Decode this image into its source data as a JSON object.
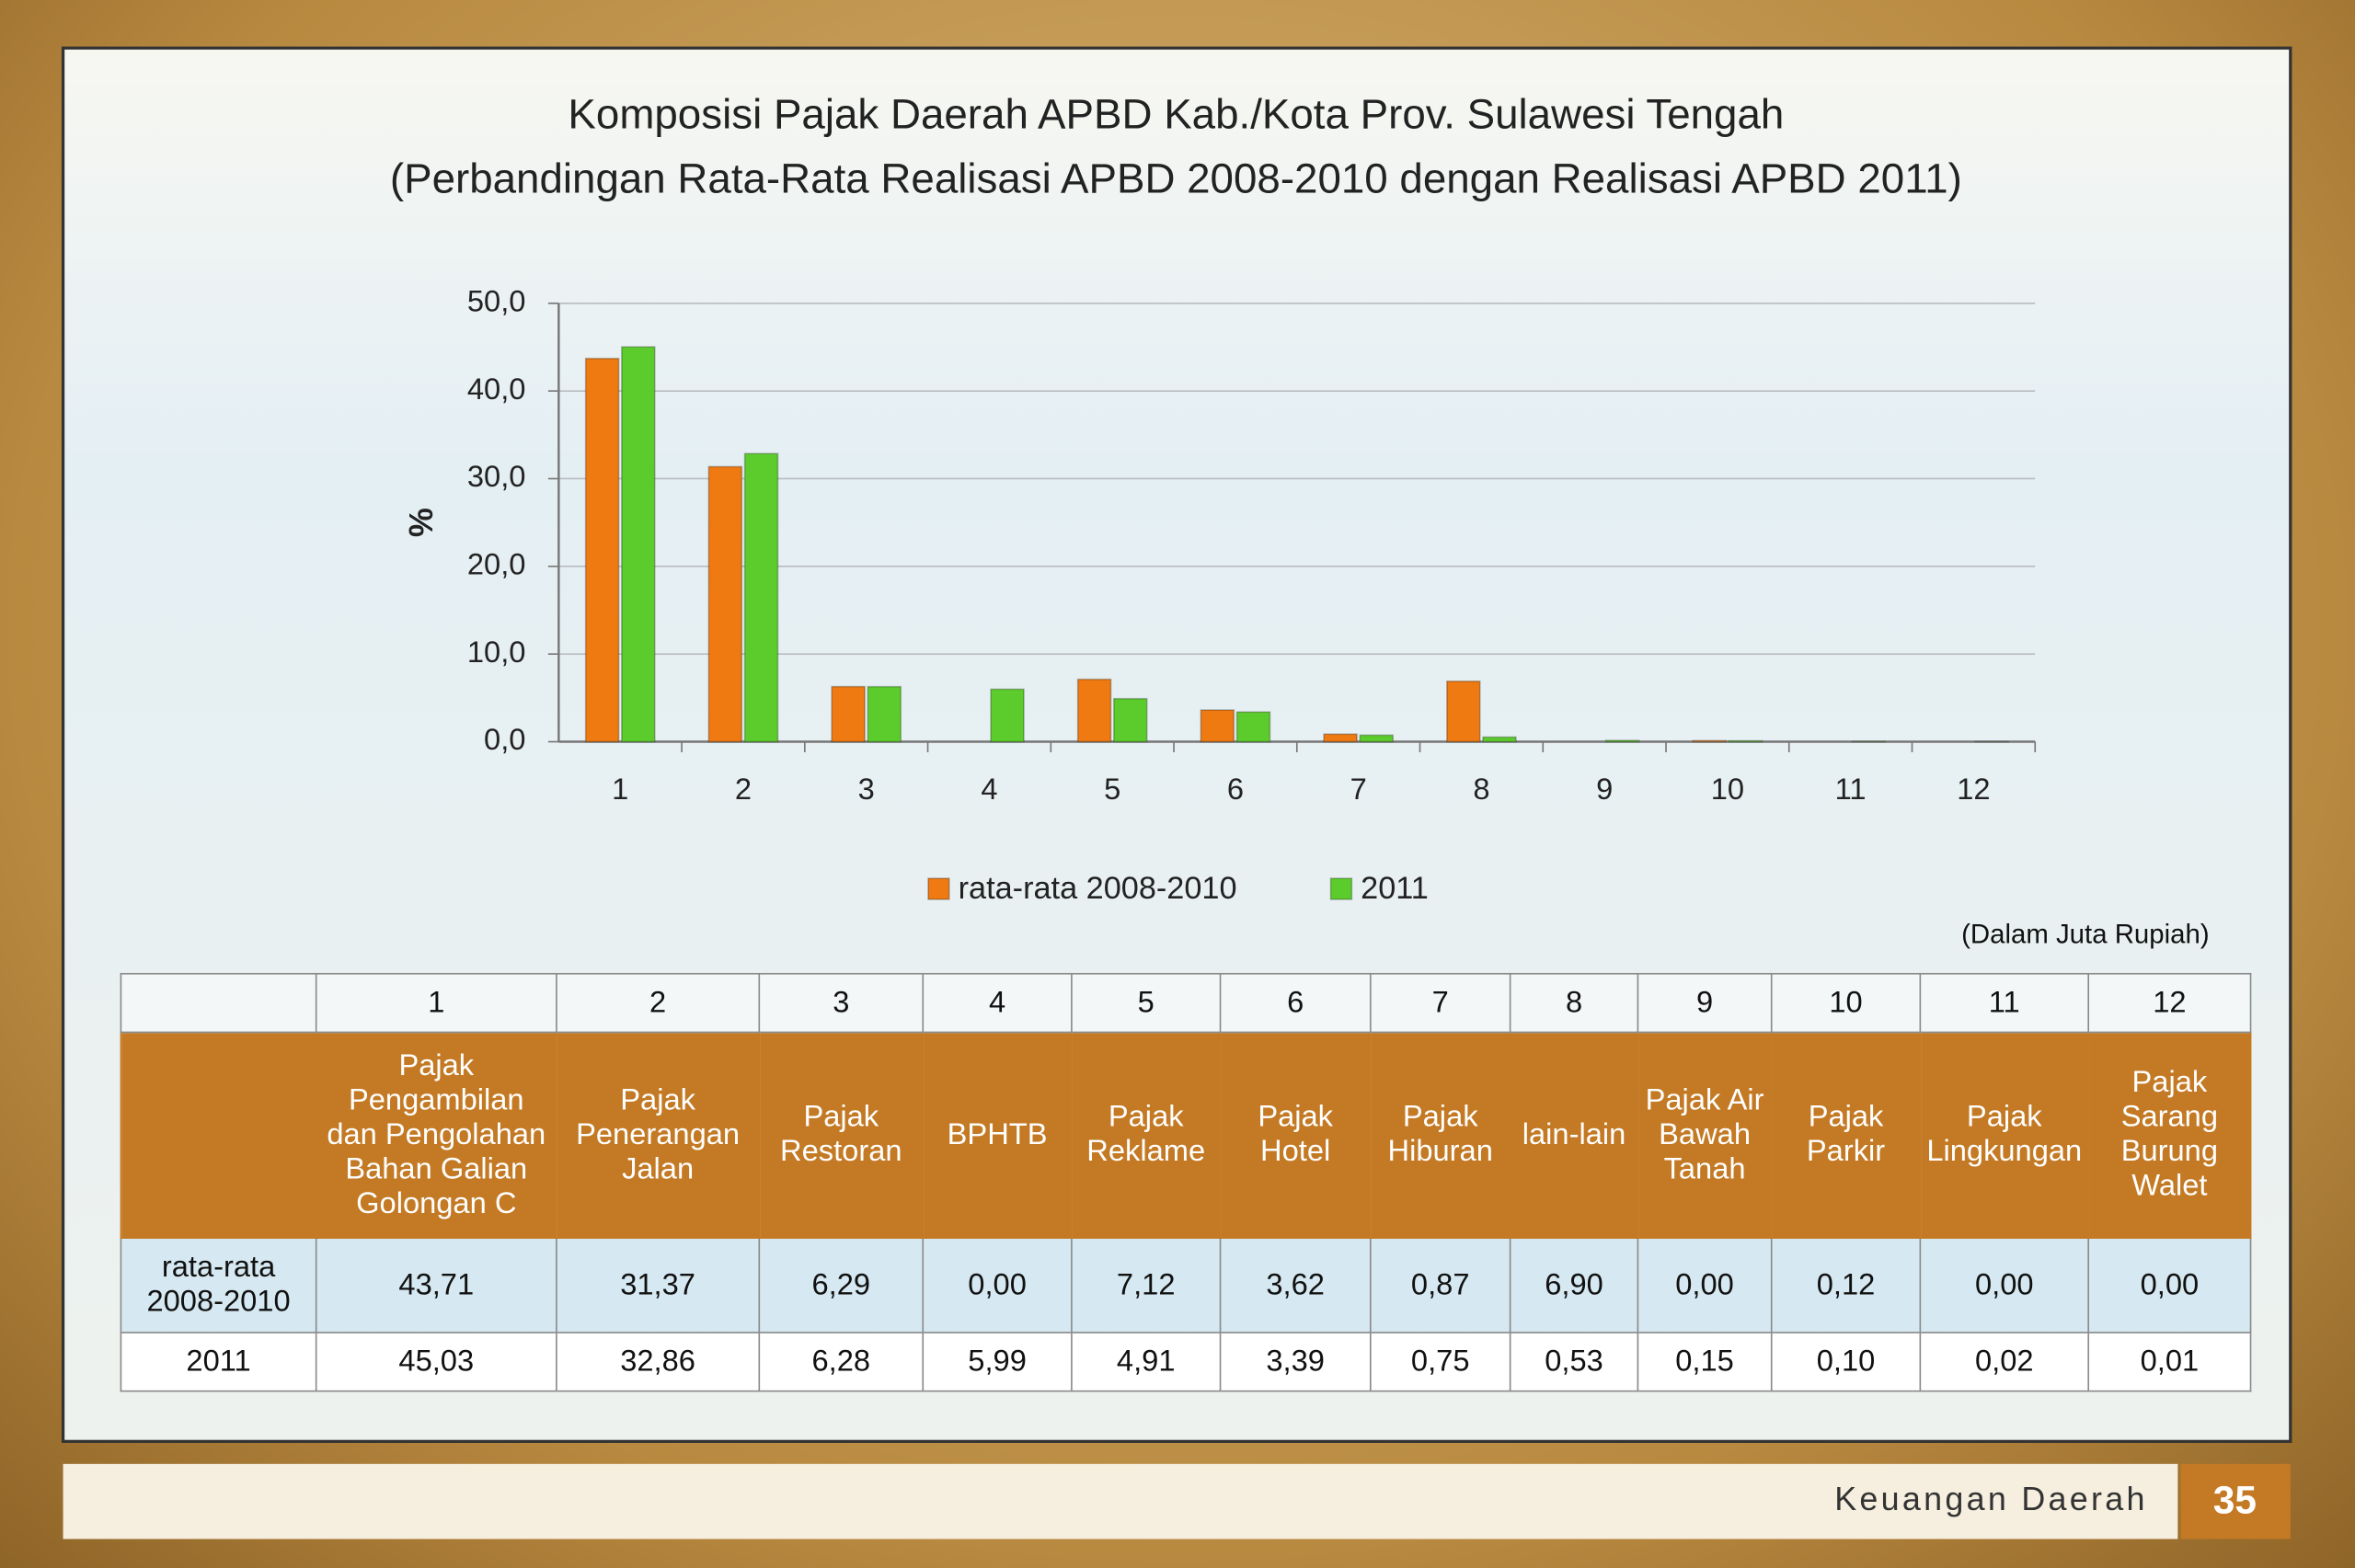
{
  "chart_data": {
    "type": "bar",
    "title": "Komposisi Pajak Daerah APBD Kab./Kota Prov. Sulawesi Tengah",
    "subtitle": "(Perbandingan Rata-Rata Realisasi APBD 2008-2010 dengan Realisasi APBD 2011)",
    "ylabel": "%",
    "categories": [
      "1",
      "2",
      "3",
      "4",
      "5",
      "6",
      "7",
      "8",
      "9",
      "10",
      "11",
      "12"
    ],
    "series": [
      {
        "name": "rata-rata 2008-2010",
        "color": "#ef7a12",
        "values": [
          43.71,
          31.37,
          6.29,
          0.0,
          7.12,
          3.62,
          0.87,
          6.9,
          0.0,
          0.12,
          0.0,
          0.0
        ]
      },
      {
        "name": "2011",
        "color": "#5ccc2c",
        "values": [
          45.03,
          32.86,
          6.28,
          5.99,
          4.91,
          3.39,
          0.75,
          0.53,
          0.15,
          0.1,
          0.02,
          0.01
        ]
      }
    ],
    "ylim": [
      0,
      50
    ],
    "yticks": [
      {
        "value": 0,
        "label": "0,0"
      },
      {
        "value": 10,
        "label": "10,0"
      },
      {
        "value": 20,
        "label": "20,0"
      },
      {
        "value": 30,
        "label": "30,0"
      },
      {
        "value": 40,
        "label": "40,0"
      },
      {
        "value": 50,
        "label": "50,0"
      }
    ],
    "grid": true,
    "legend": "bottom"
  },
  "table": {
    "note": "(Dalam Juta Rupiah)",
    "descriptions": [
      "Pajak Pengambilan dan Pengolahan Bahan Galian Golongan C",
      "Pajak Penerangan Jalan",
      "Pajak Restoran",
      "BPHTB",
      "Pajak Reklame",
      "Pajak Hotel",
      "Pajak Hiburan",
      "lain-lain",
      "Pajak Air Bawah Tanah",
      "Pajak Parkir",
      "Pajak Lingkungan",
      "Pajak Sarang Burung Walet"
    ],
    "rows": [
      {
        "values": [
          "43,71",
          "31,37",
          "6,29",
          "0,00",
          "7,12",
          "3,62",
          "0,87",
          "6,90",
          "0,00",
          "0,12",
          "0,00",
          "0,00"
        ]
      },
      {
        "values": [
          "45,03",
          "32,86",
          "6,28",
          "5,99",
          "4,91",
          "3,39",
          "0,75",
          "0,53",
          "0,15",
          "0,10",
          "0,02",
          "0,01"
        ]
      }
    ]
  },
  "footer": {
    "section": "Keuangan Daerah",
    "page": "35"
  }
}
